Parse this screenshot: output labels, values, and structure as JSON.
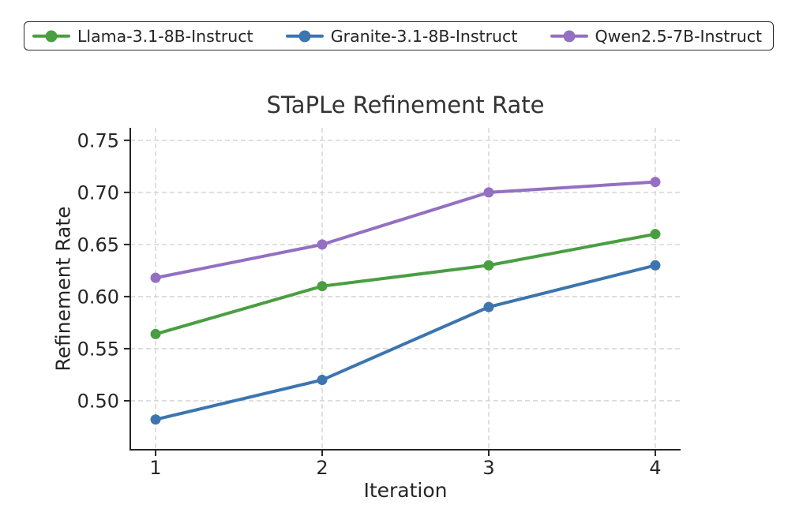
{
  "chart_data": {
    "type": "line",
    "title": "STaPLe Refinement Rate",
    "xlabel": "Iteration",
    "ylabel": "Refinement Rate",
    "x": [
      1,
      2,
      3,
      4
    ],
    "xtick_labels": [
      "1",
      "2",
      "3",
      "4"
    ],
    "yticks": [
      0.5,
      0.55,
      0.6,
      0.65,
      0.7,
      0.75
    ],
    "ytick_labels": [
      "0.50",
      "0.55",
      "0.60",
      "0.65",
      "0.70",
      "0.75"
    ],
    "xlim": [
      0.848,
      4.152
    ],
    "ylim": [
      0.453,
      0.762
    ],
    "grid": true,
    "grid_style": "dashed",
    "legend_position": "top",
    "series": [
      {
        "name": "Llama-3.1-8B-Instruct",
        "color": "#4a9e42",
        "values": [
          0.564,
          0.61,
          0.63,
          0.66
        ]
      },
      {
        "name": "Granite-3.1-8B-Instruct",
        "color": "#3c75b0",
        "values": [
          0.482,
          0.52,
          0.59,
          0.63
        ]
      },
      {
        "name": "Qwen2.5-7B-Instruct",
        "color": "#9370c1",
        "values": [
          0.618,
          0.65,
          0.7,
          0.71
        ]
      }
    ],
    "styles": {
      "text_color": "#262626",
      "title_color": "#333333",
      "spine_color": "#262626",
      "grid_color": "#d8d8d8",
      "background": "#ffffff",
      "legend_border_color": "#2b2b2b"
    }
  }
}
